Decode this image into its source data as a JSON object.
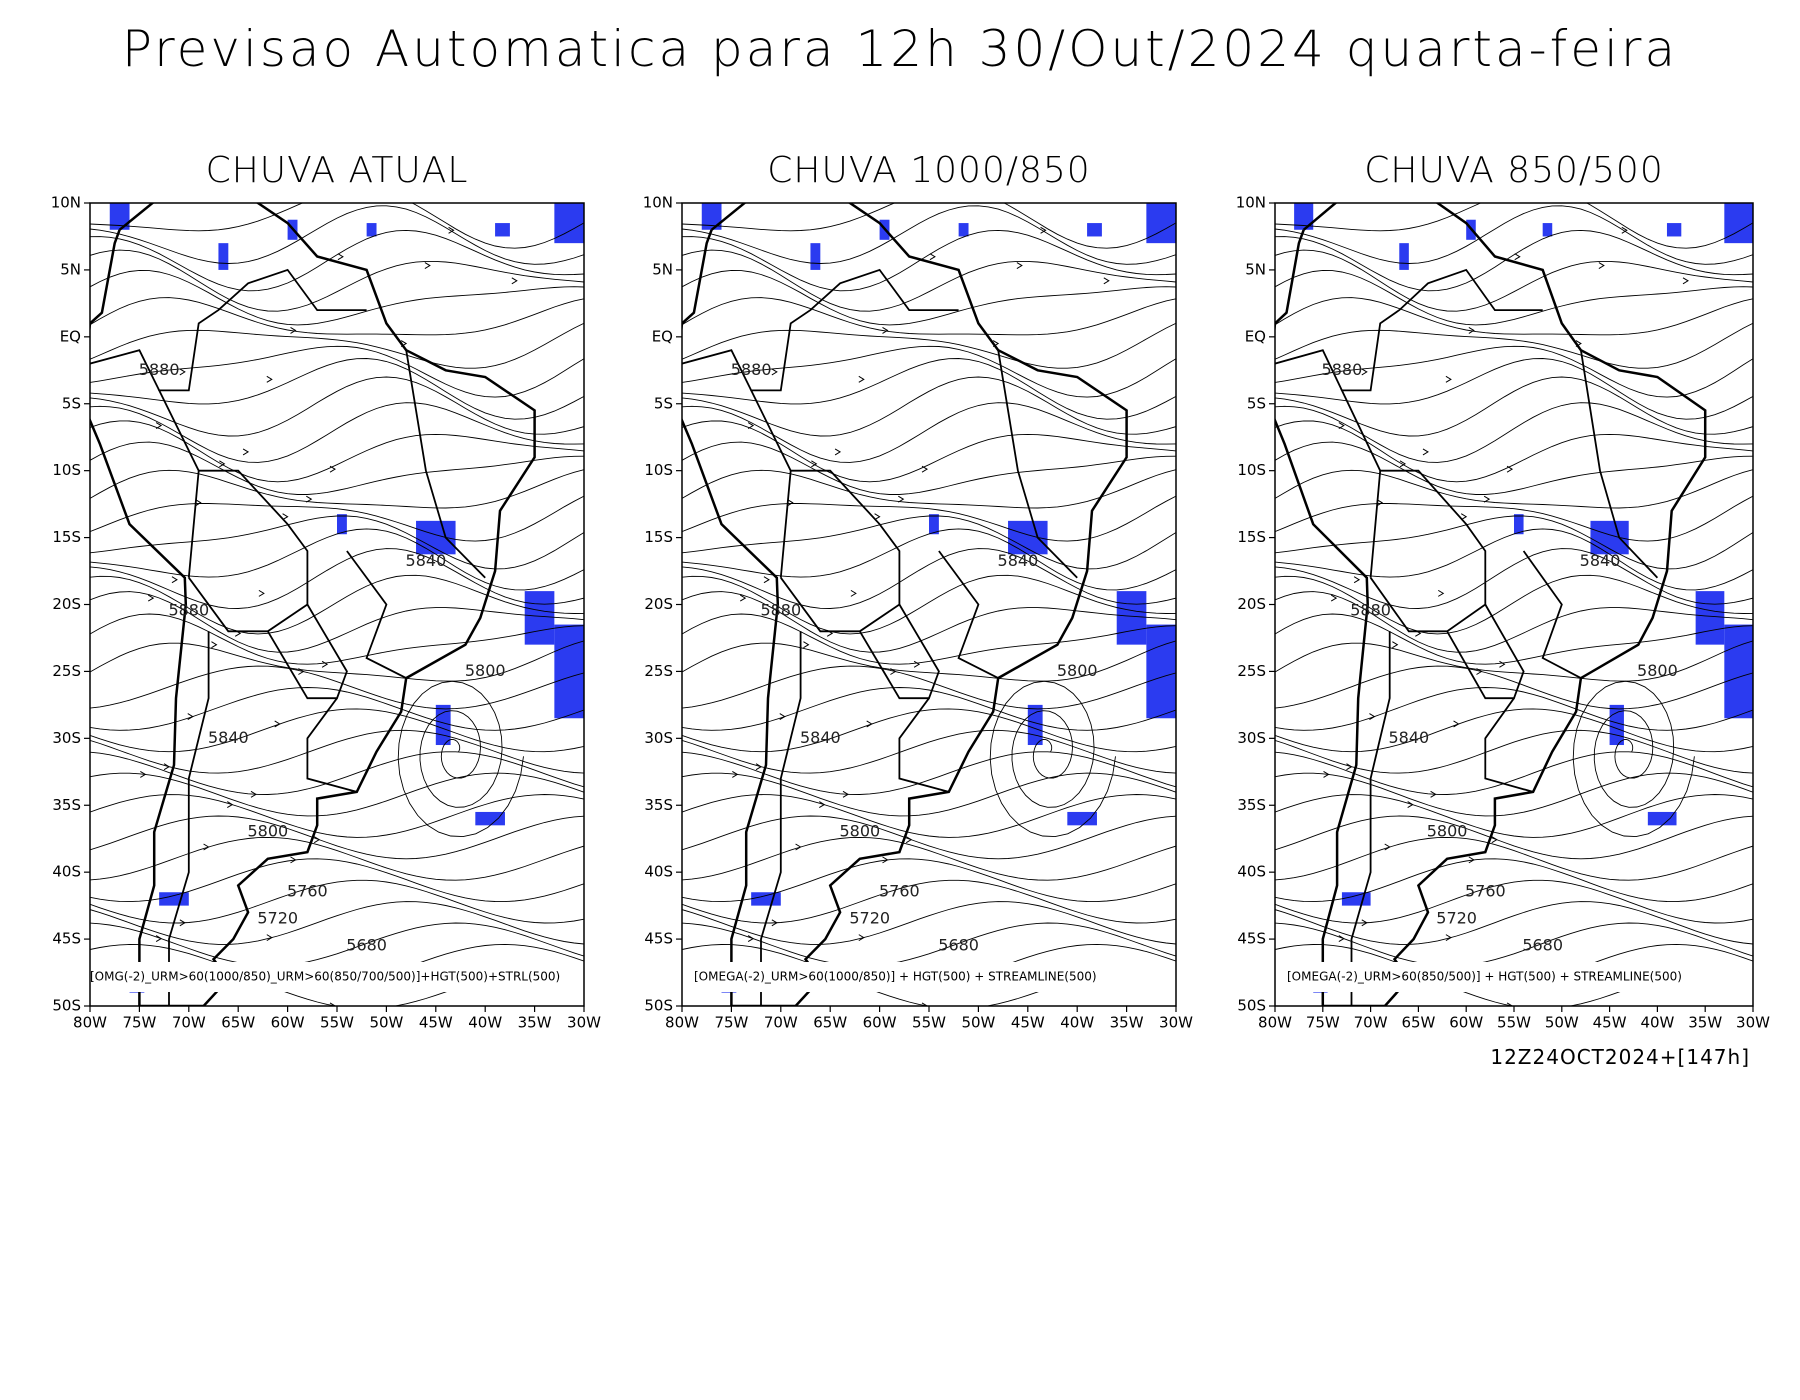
{
  "title": "Previsao Automatica para 12h 30/Out/2024 quarta-feira",
  "panels": [
    {
      "title": "CHUVA ATUAL",
      "caption": "[OMG(-2)_URM>60(1000/850)_URM>60(850/700/500)]+HGT(500)+STRL(500)"
    },
    {
      "title": "CHUVA 1000/850",
      "caption": "[OMEGA(-2)_URM>60(1000/850)] + HGT(500) + STREAMLINE(500)"
    },
    {
      "title": "CHUVA 850/500",
      "caption": "[OMEGA(-2)_URM>60(850/500)] + HGT(500) + STREAMLINE(500)"
    }
  ],
  "lat_labels": [
    "10N",
    "5N",
    "EQ",
    "5S",
    "10S",
    "15S",
    "20S",
    "25S",
    "30S",
    "35S",
    "40S",
    "45S",
    "50S"
  ],
  "lon_labels": [
    "80W",
    "75W",
    "70W",
    "65W",
    "60W",
    "55W",
    "50W",
    "45W",
    "40W",
    "35W",
    "30W"
  ],
  "contour_labels": [
    "5880",
    "5840",
    "5880",
    "5800",
    "5840",
    "5800",
    "5760",
    "5720",
    "5680"
  ],
  "footer": "12Z24OCT2024+[147h]"
}
